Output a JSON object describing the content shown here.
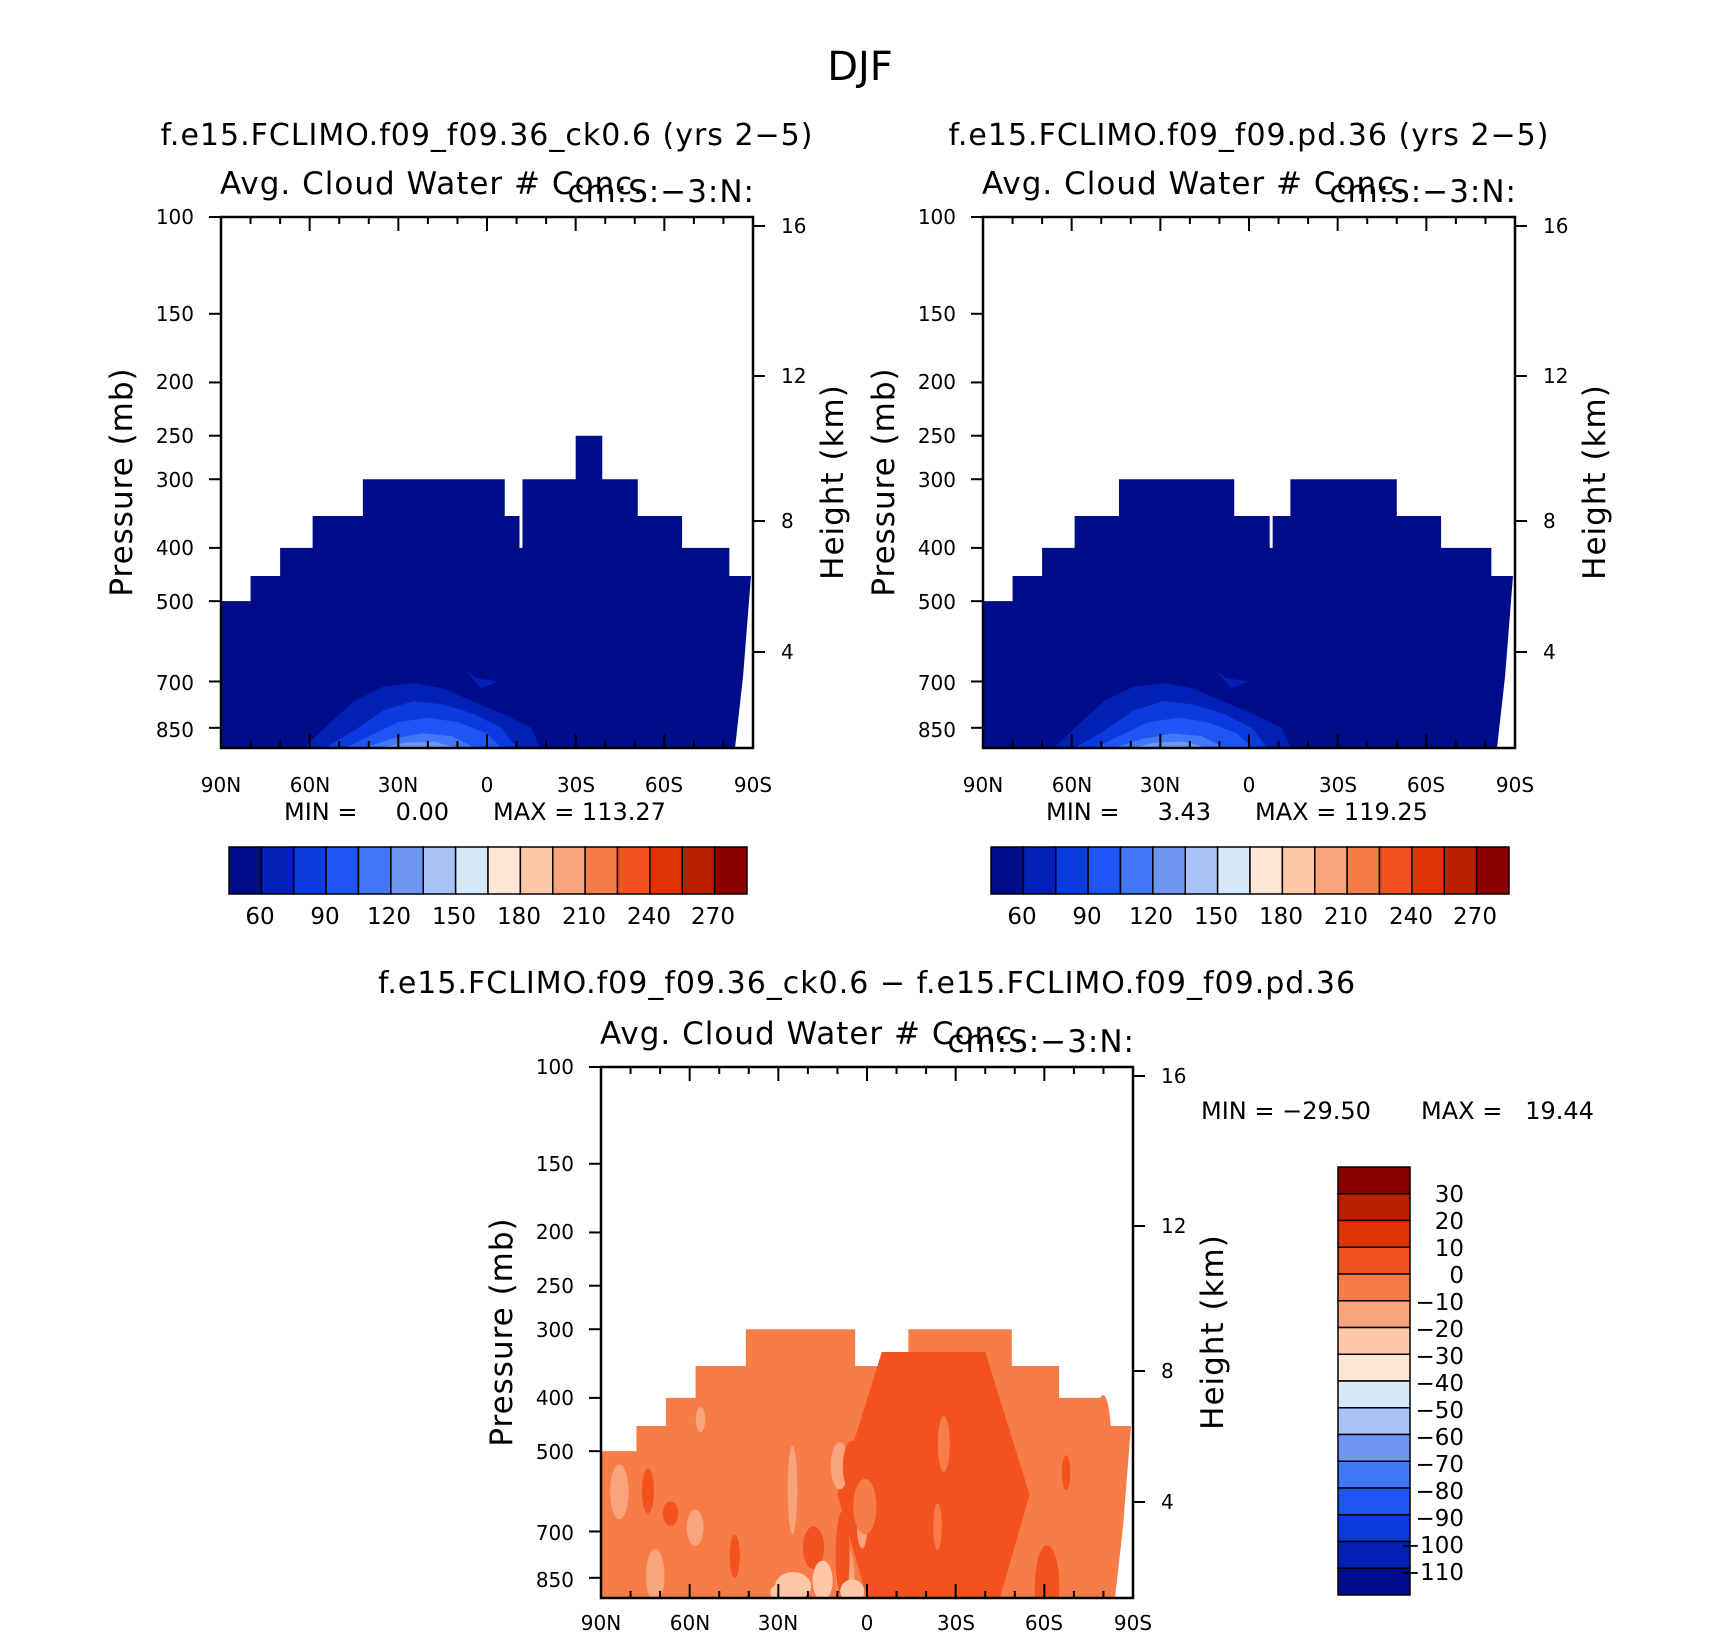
{
  "page_title": "DJF",
  "colors": {
    "neg": [
      "#000d8a",
      "#0021b3",
      "#0a3ae0",
      "#1f55f5",
      "#4277f5",
      "#6d97f2",
      "#a7c2f7",
      "#d4e8f8"
    ],
    "pos": [
      "#fde7d4",
      "#fcc8a8",
      "#f9a47c",
      "#f77c48",
      "#f2521d",
      "#df3305",
      "#b92000",
      "#8a0000"
    ]
  },
  "chart_data": [
    {
      "type": "contour",
      "title": "f.e15.FCLIMO.f09_f09.36_ck0.6 (yrs 2−5)",
      "subtitle_left": "Avg. Cloud Water # Conc.",
      "subtitle_right": "cm:S:−3:N:",
      "ylabel": "Pressure (mb)",
      "ylabel_right": "Height (km)",
      "x_ticks": [
        "90N",
        "60N",
        "30N",
        "0",
        "30S",
        "60S",
        "90S"
      ],
      "y_ticks": [
        "100",
        "150",
        "200",
        "250",
        "300",
        "400",
        "500",
        "700",
        "850"
      ],
      "height_ticks": [
        "16",
        "12",
        "8",
        "4"
      ],
      "min_text": "MIN =     0.00",
      "max_text": "MAX = 113.27",
      "colorbar_labels": [
        "60",
        "90",
        "120",
        "150",
        "180",
        "210",
        "240",
        "270"
      ],
      "step_profile": [
        [
          -90,
          500
        ],
        [
          -80,
          450
        ],
        [
          -70,
          400
        ],
        [
          -59,
          350
        ],
        [
          -42,
          300
        ],
        [
          6,
          350
        ],
        [
          11,
          400
        ],
        [
          12,
          300
        ],
        [
          30,
          250
        ],
        [
          39,
          300
        ],
        [
          51,
          350
        ],
        [
          66,
          400
        ],
        [
          82,
          450
        ],
        [
          90,
          450
        ]
      ]
    },
    {
      "type": "contour",
      "title": "f.e15.FCLIMO.f09_f09.pd.36 (yrs 2−5)",
      "subtitle_left": "Avg. Cloud Water # Conc.",
      "subtitle_right": "cm:S:−3:N:",
      "ylabel": "Pressure (mb)",
      "ylabel_right": "Height (km)",
      "x_ticks": [
        "90N",
        "60N",
        "30N",
        "0",
        "30S",
        "60S",
        "90S"
      ],
      "y_ticks": [
        "100",
        "150",
        "200",
        "250",
        "300",
        "400",
        "500",
        "700",
        "850"
      ],
      "height_ticks": [
        "16",
        "12",
        "8",
        "4"
      ],
      "min_text": "MIN =     3.43",
      "max_text": "MAX = 119.25",
      "colorbar_labels": [
        "60",
        "90",
        "120",
        "150",
        "180",
        "210",
        "240",
        "270"
      ],
      "step_profile": [
        [
          -90,
          500
        ],
        [
          -80,
          450
        ],
        [
          -70,
          400
        ],
        [
          -59,
          350
        ],
        [
          -44,
          300
        ],
        [
          -5,
          350
        ],
        [
          7,
          400
        ],
        [
          8,
          350
        ],
        [
          14,
          300
        ],
        [
          50,
          350
        ],
        [
          65,
          400
        ],
        [
          82,
          450
        ],
        [
          90,
          450
        ]
      ]
    },
    {
      "type": "contour",
      "title": "f.e15.FCLIMO.f09_f09.36_ck0.6 − f.e15.FCLIMO.f09_f09.pd.36",
      "subtitle_left": "Avg. Cloud Water # Conc.",
      "subtitle_right": "cm:S:−3:N:",
      "ylabel": "Pressure (mb)",
      "ylabel_right": "Height (km)",
      "x_ticks": [
        "90N",
        "60N",
        "30N",
        "0",
        "30S",
        "60S",
        "90S"
      ],
      "y_ticks": [
        "100",
        "150",
        "200",
        "250",
        "300",
        "400",
        "500",
        "700",
        "850"
      ],
      "height_ticks": [
        "16",
        "12",
        "8",
        "4"
      ],
      "min_text": "MIN = −29.50",
      "max_text": "MAX =   19.44",
      "colorbar_labels": [
        "30",
        "20",
        "10",
        "0",
        "−10",
        "−20",
        "−30",
        "−40",
        "−50",
        "−60",
        "−70",
        "−80",
        "−90",
        "−100",
        "−110"
      ],
      "step_profile": [
        [
          -90,
          500
        ],
        [
          -78,
          450
        ],
        [
          -68,
          400
        ],
        [
          -58,
          350
        ],
        [
          -41,
          300
        ],
        [
          -4,
          350
        ],
        [
          4,
          400
        ],
        [
          6,
          350
        ],
        [
          14,
          300
        ],
        [
          49,
          350
        ],
        [
          65,
          400
        ],
        [
          80,
          450
        ],
        [
          90,
          450
        ]
      ]
    }
  ]
}
